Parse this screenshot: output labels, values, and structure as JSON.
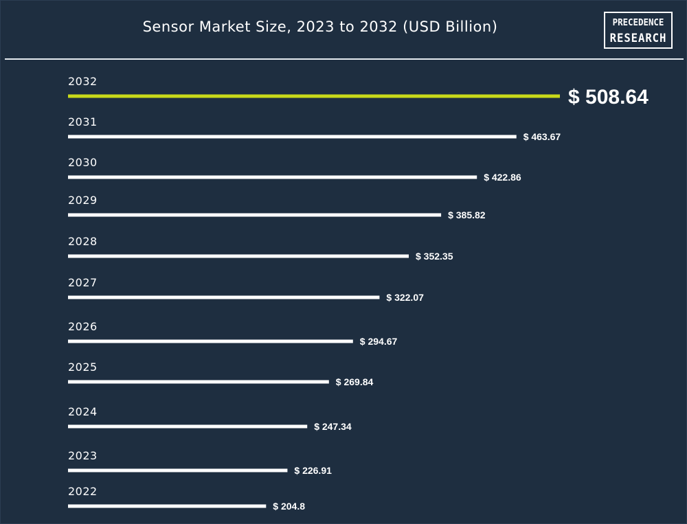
{
  "header": {
    "title": "Sensor Market Size, 2023 to 2032 (USD Billion)"
  },
  "logo": {
    "line1": "PRECEDENCE",
    "line2": "RESEARCH"
  },
  "colors": {
    "background": "#1e2e40",
    "bar": "#ffffff",
    "highlight_bar": "#c8d91a",
    "text": "#ffffff"
  },
  "chart_data": {
    "type": "bar",
    "orientation": "horizontal",
    "title": "Sensor Market Size, 2023 to 2032 (USD Billion)",
    "categories": [
      "2032",
      "2031",
      "2030",
      "2029",
      "2028",
      "2027",
      "2026",
      "2025",
      "2024",
      "2023",
      "2022"
    ],
    "values": [
      508.64,
      463.67,
      422.86,
      385.82,
      352.35,
      322.07,
      294.67,
      269.84,
      247.34,
      226.91,
      204.8
    ],
    "value_labels": [
      "$ 508.64",
      "$ 463.67",
      "$ 422.86",
      "$ 385.82",
      "$ 352.35",
      "$ 322.07",
      "$ 294.67",
      "$ 269.84",
      "$ 247.34",
      "$ 226.91",
      "$ 204.8"
    ],
    "highlight_category": "2032",
    "xlabel": "",
    "ylabel": "",
    "xlim": [
      0,
      508.64
    ],
    "grid": false,
    "legend": "none"
  }
}
